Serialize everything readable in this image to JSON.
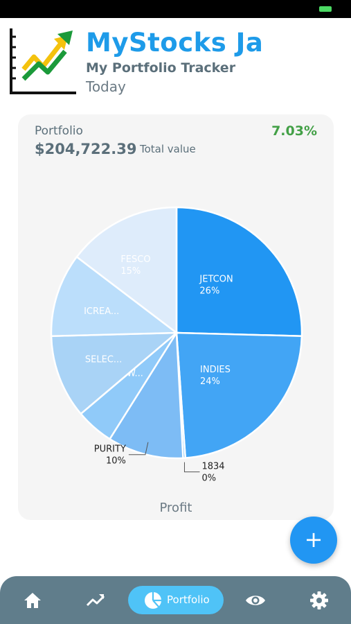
{
  "app": {
    "title": "MyStocks Ja",
    "subtitle": "My Portfolio Tracker",
    "date_label": "Today"
  },
  "portfolio_card": {
    "label": "Portfolio",
    "total_value": "$204,722.39",
    "total_label": "Total value",
    "change_percent": "7.03%",
    "footer_label": "Profit"
  },
  "chart_data": {
    "type": "pie",
    "slices": [
      {
        "label": "JETCON",
        "percent": "26%",
        "value": 26
      },
      {
        "label": "INDIES",
        "percent": "24%",
        "value": 24
      },
      {
        "label": "1834",
        "percent": "0%",
        "value": 0.3
      },
      {
        "label": "PURITY",
        "percent": "10%",
        "value": 10
      },
      {
        "label": "W...",
        "value": 5
      },
      {
        "label": "SELEC...",
        "value": 11
      },
      {
        "label": "ICREA...",
        "value": 11
      },
      {
        "label": "FESCO",
        "percent": "15%",
        "value": 15
      }
    ],
    "colors": [
      "#2196f3",
      "#42a5f5",
      "#64b5f6",
      "#7dbcf5",
      "#90caf9",
      "#a9d3f6",
      "#bbdefb",
      "#deecfb"
    ]
  },
  "fab": {
    "icon": "plus-icon",
    "symbol": "+"
  },
  "bottom_nav": {
    "items": [
      {
        "icon": "home-icon"
      },
      {
        "icon": "trending-icon"
      },
      {
        "icon": "pie-chart-icon",
        "label": "Portfolio",
        "active": true
      },
      {
        "icon": "eye-icon"
      },
      {
        "icon": "gear-icon"
      }
    ]
  }
}
